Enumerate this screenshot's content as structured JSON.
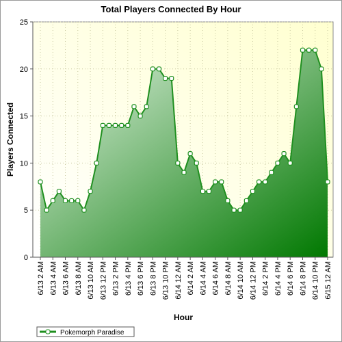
{
  "chart_data": {
    "type": "area",
    "title": "Total Players Connected By Hour",
    "xlabel": "Hour",
    "ylabel": "Players Connected",
    "categories": [
      "6/13 2 AM",
      null,
      "6/13 4 AM",
      null,
      "6/13 6 AM",
      null,
      "6/13 8 AM",
      null,
      "6/13 10 AM",
      null,
      "6/13 12 PM",
      null,
      "6/13 2 PM",
      null,
      "6/13 4 PM",
      null,
      "6/13 6 PM",
      null,
      "6/13 8 PM",
      null,
      "6/13 10 PM",
      null,
      "6/14 12 AM",
      null,
      "6/14 2 AM",
      null,
      "6/14 4 AM",
      null,
      "6/14 6 AM",
      null,
      "6/14 8 AM",
      null,
      "6/14 10 AM",
      null,
      "6/14 12 PM",
      null,
      "6/14 2 PM",
      null,
      "6/14 4 PM",
      null,
      "6/14 6 PM",
      null,
      "6/14 8 PM",
      null,
      "6/14 10 PM",
      null,
      "6/15 12 AM"
    ],
    "series": [
      {
        "name": "Pokemorph Paradise",
        "color": "#1f8f1f",
        "values": [
          8,
          5,
          6,
          7,
          6,
          6,
          6,
          5,
          7,
          10,
          14,
          14,
          14,
          14,
          14,
          16,
          15,
          16,
          20,
          20,
          19,
          19,
          10,
          9,
          11,
          10,
          7,
          7,
          8,
          8,
          6,
          5,
          5,
          6,
          7,
          8,
          8,
          9,
          10,
          11,
          10,
          16,
          22,
          22,
          22,
          20,
          8
        ]
      }
    ],
    "ylim": [
      0,
      25
    ],
    "yticks": [
      0,
      5,
      10,
      15,
      20,
      25
    ],
    "grid": true,
    "legend": "bottom-left"
  }
}
